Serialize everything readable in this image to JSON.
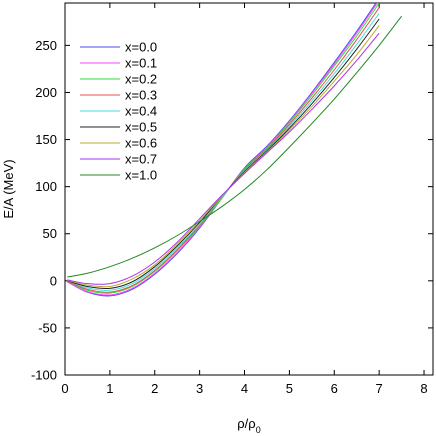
{
  "chart_data": {
    "type": "line",
    "title": "",
    "xlabel": {
      "base": "ρ/ρ",
      "sub": "0"
    },
    "ylabel": "E/A (MeV)",
    "xlim": [
      0,
      8.2
    ],
    "ylim": [
      -100,
      295
    ],
    "xticks": [
      0,
      1,
      2,
      3,
      4,
      5,
      6,
      7,
      8
    ],
    "yticks": [
      -100,
      -50,
      0,
      50,
      100,
      150,
      200,
      250
    ],
    "grid": false,
    "legend_position": "top-left",
    "series": [
      {
        "name": "x=0.0",
        "color": "#4a4af0",
        "x": [
          0.05,
          0.5,
          1,
          1.5,
          2,
          2.5,
          3,
          3.5,
          4,
          4.5,
          5,
          5.5,
          6,
          6.5,
          7
        ],
        "y": [
          -1,
          -12,
          -16,
          -9,
          7,
          29,
          56,
          88,
          120,
          143,
          170,
          200,
          232,
          265,
          300
        ]
      },
      {
        "name": "x=0.1",
        "color": "#ff44ff",
        "x": [
          0.05,
          0.5,
          1,
          1.5,
          2,
          2.5,
          3,
          3.5,
          4,
          4.5,
          5,
          5.5,
          6,
          6.5,
          7
        ],
        "y": [
          -1,
          -11.5,
          -15,
          -8,
          8,
          30,
          57,
          88,
          119,
          142,
          169,
          199,
          230,
          263,
          298
        ]
      },
      {
        "name": "x=0.2",
        "color": "#33dd33",
        "x": [
          0.05,
          0.5,
          1,
          1.5,
          2,
          2.5,
          3,
          3.5,
          4,
          4.5,
          5,
          5.5,
          6,
          6.5,
          7
        ],
        "y": [
          -0.5,
          -10,
          -13,
          -6,
          10,
          32,
          58,
          88,
          119,
          141,
          168,
          197,
          228,
          260,
          295
        ]
      },
      {
        "name": "x=0.3",
        "color": "#e05050",
        "x": [
          0.05,
          0.5,
          1,
          1.5,
          2,
          2.5,
          3,
          3.5,
          4,
          4.5,
          5,
          5.5,
          6,
          6.5,
          7
        ],
        "y": [
          -0.5,
          -9,
          -12,
          -5,
          11,
          33,
          59,
          89,
          118,
          140,
          166,
          194,
          224,
          256,
          290
        ]
      },
      {
        "name": "x=0.4",
        "color": "#44dddd",
        "x": [
          0.05,
          0.5,
          1,
          1.5,
          2,
          2.5,
          3,
          3.5,
          4,
          4.5,
          5,
          5.5,
          6,
          6.5,
          7
        ],
        "y": [
          0,
          -7.5,
          -10,
          -3,
          13,
          35,
          60,
          89,
          117,
          139,
          164,
          191,
          220,
          251,
          284
        ]
      },
      {
        "name": "x=0.5",
        "color": "#222222",
        "x": [
          0.05,
          0.5,
          1,
          1.5,
          2,
          2.5,
          3,
          3.5,
          4,
          4.5,
          5,
          5.5,
          6,
          6.5,
          7
        ],
        "y": [
          0,
          -6,
          -8,
          -1,
          15,
          37,
          62,
          90,
          116,
          138,
          162,
          188,
          216,
          246,
          278
        ]
      },
      {
        "name": "x=0.6",
        "color": "#bbaa33",
        "x": [
          0.05,
          0.5,
          1,
          1.5,
          2,
          2.5,
          3,
          3.5,
          4,
          4.5,
          5,
          5.5,
          6,
          6.5,
          7
        ],
        "y": [
          0.5,
          -4.5,
          -6,
          2,
          17,
          39,
          64,
          90,
          115,
          137,
          160,
          185,
          212,
          240,
          271
        ]
      },
      {
        "name": "x=0.7",
        "color": "#aa33ee",
        "x": [
          0.05,
          0.5,
          1,
          1.5,
          2,
          2.5,
          3,
          3.5,
          4,
          4.5,
          5,
          5.5,
          6,
          6.5,
          7
        ],
        "y": [
          1,
          -3,
          -3,
          5,
          20,
          41,
          66,
          91,
          114,
          136,
          158,
          182,
          207,
          234,
          263
        ]
      },
      {
        "name": "x=1.0",
        "color": "#228822",
        "x": [
          0.05,
          0.5,
          1,
          1.5,
          2,
          2.5,
          3,
          3.5,
          4,
          4.5,
          5,
          5.5,
          6,
          6.5,
          7,
          7.5
        ],
        "y": [
          4,
          8,
          15,
          24,
          35,
          48,
          63,
          79,
          97,
          118,
          142,
          167,
          193,
          221,
          250,
          281
        ]
      }
    ]
  }
}
